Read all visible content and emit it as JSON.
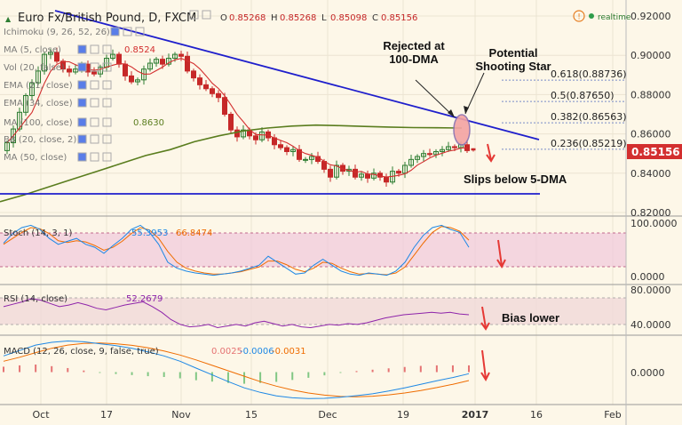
{
  "header": {
    "title": "Euro Fx/British Pound, D, FXCM",
    "ohlc": [
      {
        "k": "O",
        "v": "0.85268"
      },
      {
        "k": "H",
        "v": "0.85268"
      },
      {
        "k": "L",
        "v": "0.85098"
      },
      {
        "k": "C",
        "v": "0.85156"
      }
    ],
    "realtime": "realtime"
  },
  "indicators": [
    {
      "label": "Ichimoku (9, 26, 52, 26)",
      "value": ""
    },
    {
      "label": "MA (5, close)",
      "value": "0.8524"
    },
    {
      "label": "Vol (20, false)",
      "value": ""
    },
    {
      "label": "EMA (21, close)",
      "value": ""
    },
    {
      "label": "EMA (34, close)",
      "value": ""
    },
    {
      "label": "MA (100, close)",
      "value": "0.8630"
    },
    {
      "label": "BB (20, close, 2)",
      "value": ""
    },
    {
      "label": "MA (50, close)",
      "value": ""
    }
  ],
  "price_axis": [
    "0.92000",
    "0.90000",
    "0.88000",
    "0.86000",
    "0.84000",
    "0.82000"
  ],
  "current_price": "0.85156",
  "fib_levels": [
    {
      "label": "0.618(0.88736)",
      "price": 0.88736
    },
    {
      "label": "0.5(0.87650)",
      "price": 0.8765
    },
    {
      "label": "0.382(0.86563)",
      "price": 0.86563
    },
    {
      "label": "0.236(0.85219)",
      "price": 0.85219
    }
  ],
  "annotations": {
    "rejected": [
      "Rejected at",
      "100-DMA"
    ],
    "shooting_star": [
      "Potential",
      "Shooting Star"
    ],
    "slips": "Slips below 5-DMA",
    "bias": "Bias lower"
  },
  "x_axis": [
    "Oct",
    "17",
    "Nov",
    "15",
    "Dec",
    "19",
    "2017",
    "16",
    "Feb"
  ],
  "panels": {
    "stoch": {
      "label": "Stoch (14, 3, 1)",
      "k": "55.3953",
      "d": "66.8474",
      "axis": [
        "100.0000",
        "0.0000"
      ]
    },
    "rsi": {
      "label": "RSI (14, close)",
      "value": "52.2679",
      "axis": [
        "80.0000",
        "40.0000"
      ]
    },
    "macd": {
      "label": "MACD (12, 26, close, 9, false, true)",
      "hist": "0.0025",
      "macd": "-0.0006",
      "signal": "-0.0031",
      "axis": [
        "0.0000"
      ]
    }
  },
  "colors": {
    "background": "#fdf7e8",
    "up": "#2e7d32",
    "down": "#c62828",
    "trendline": "#1f1fcc",
    "ma100": "#5a7d1e",
    "ma5": "#d32f2f",
    "fib": "#7a8cc8",
    "stoch_k": "#1e88e5",
    "stoch_d": "#ef6c00",
    "rsi": "#8e24aa",
    "macd": "#1e88e5",
    "signal": "#ef6c00",
    "hist": "#e57373",
    "band": "#efc8dc"
  },
  "chart_data": [
    {
      "type": "candlestick",
      "title": "Euro Fx/British Pound, D, FXCM",
      "x": [
        "Oct",
        "17",
        "Nov",
        "15",
        "Dec",
        "19",
        "2017",
        "16",
        "Feb"
      ],
      "ylim": [
        0.815,
        0.925
      ],
      "last_candle": {
        "open": 0.85268,
        "high": 0.85268,
        "low": 0.85098,
        "close": 0.85156
      },
      "closes": [
        0.8555,
        0.8625,
        0.871,
        0.8795,
        0.886,
        0.892,
        0.9005,
        0.9015,
        0.897,
        0.893,
        0.8915,
        0.893,
        0.8955,
        0.8915,
        0.8905,
        0.894,
        0.8985,
        0.9005,
        0.8955,
        0.8895,
        0.8865,
        0.8875,
        0.893,
        0.896,
        0.898,
        0.8955,
        0.8985,
        0.9005,
        0.8995,
        0.892,
        0.8885,
        0.885,
        0.883,
        0.8805,
        0.8785,
        0.87,
        0.862,
        0.8585,
        0.862,
        0.859,
        0.857,
        0.861,
        0.858,
        0.8545,
        0.853,
        0.851,
        0.852,
        0.847,
        0.847,
        0.8485,
        0.846,
        0.842,
        0.838,
        0.844,
        0.841,
        0.842,
        0.838,
        0.8395,
        0.8375,
        0.84,
        0.838,
        0.8355,
        0.841,
        0.84,
        0.844,
        0.847,
        0.8485,
        0.85,
        0.8495,
        0.851,
        0.852,
        0.8535,
        0.853,
        0.8545,
        0.8515
      ],
      "series": [
        {
          "name": "MA (100, close)",
          "last": 0.863
        },
        {
          "name": "MA (5, close)",
          "last": 0.8524
        }
      ],
      "fibonacci": [
        0.88736,
        0.8765,
        0.86563,
        0.85219
      ],
      "horizontal_support": 0.829
    },
    {
      "type": "line",
      "title": "Stoch (14, 3, 1)",
      "ylim": [
        0,
        100
      ],
      "series": [
        {
          "name": "K",
          "last": 55.3953,
          "values": [
            62,
            78,
            88,
            92,
            85,
            70,
            60,
            65,
            70,
            60,
            55,
            45,
            58,
            70,
            85,
            92,
            80,
            60,
            30,
            20,
            15,
            12,
            10,
            8,
            10,
            12,
            15,
            20,
            25,
            40,
            30,
            20,
            10,
            12,
            25,
            35,
            25,
            15,
            10,
            8,
            12,
            10,
            8,
            15,
            30,
            55,
            75,
            88,
            92,
            85,
            80,
            55
          ]
        },
        {
          "name": "D",
          "last": 66.8474,
          "values": [
            60,
            70,
            80,
            88,
            86,
            78,
            66,
            63,
            66,
            64,
            58,
            50,
            55,
            65,
            78,
            88,
            84,
            70,
            48,
            30,
            20,
            15,
            12,
            10,
            10,
            12,
            14,
            18,
            22,
            32,
            32,
            26,
            18,
            14,
            20,
            30,
            28,
            20,
            14,
            10,
            11,
            10,
            9,
            12,
            22,
            42,
            62,
            80,
            90,
            88,
            82,
            67
          ]
        }
      ]
    },
    {
      "type": "line",
      "title": "RSI (14, close)",
      "ylim": [
        30,
        85
      ],
      "series": [
        {
          "name": "RSI",
          "last": 52.2679,
          "values": [
            62,
            65,
            68,
            72,
            70,
            66,
            62,
            64,
            67,
            64,
            60,
            58,
            61,
            64,
            66,
            68,
            62,
            55,
            46,
            40,
            37,
            38,
            40,
            36,
            38,
            40,
            38,
            42,
            44,
            41,
            38,
            40,
            37,
            36,
            38,
            40,
            39,
            41,
            40,
            42,
            45,
            48,
            50,
            52,
            53,
            54,
            55,
            54,
            55,
            53,
            52
          ]
        }
      ]
    },
    {
      "type": "line",
      "title": "MACD (12, 26, close, 9, false, true)",
      "series": [
        {
          "name": "MACD",
          "last": -0.0006,
          "values": [
            0.006,
            0.008,
            0.01,
            0.011,
            0.0115,
            0.0112,
            0.0105,
            0.0098,
            0.0088,
            0.0075,
            0.006,
            0.004,
            0.0015,
            -0.001,
            -0.0035,
            -0.0058,
            -0.0075,
            -0.0088,
            -0.0095,
            -0.0098,
            -0.0097,
            -0.0093,
            -0.0087,
            -0.008,
            -0.007,
            -0.0058,
            -0.0045,
            -0.0032,
            -0.002,
            -0.0006
          ]
        },
        {
          "name": "Signal",
          "last": -0.0031,
          "values": [
            0.004,
            0.0055,
            0.0072,
            0.0088,
            0.01,
            0.0106,
            0.0108,
            0.0105,
            0.0099,
            0.009,
            0.0078,
            0.0063,
            0.0045,
            0.0025,
            0.0005,
            -0.0015,
            -0.0035,
            -0.0052,
            -0.0066,
            -0.0077,
            -0.0085,
            -0.009,
            -0.0091,
            -0.0089,
            -0.0084,
            -0.0077,
            -0.0068,
            -0.0057,
            -0.0045,
            -0.0031
          ]
        },
        {
          "name": "Histogram",
          "last": 0.0025
        }
      ]
    }
  ]
}
